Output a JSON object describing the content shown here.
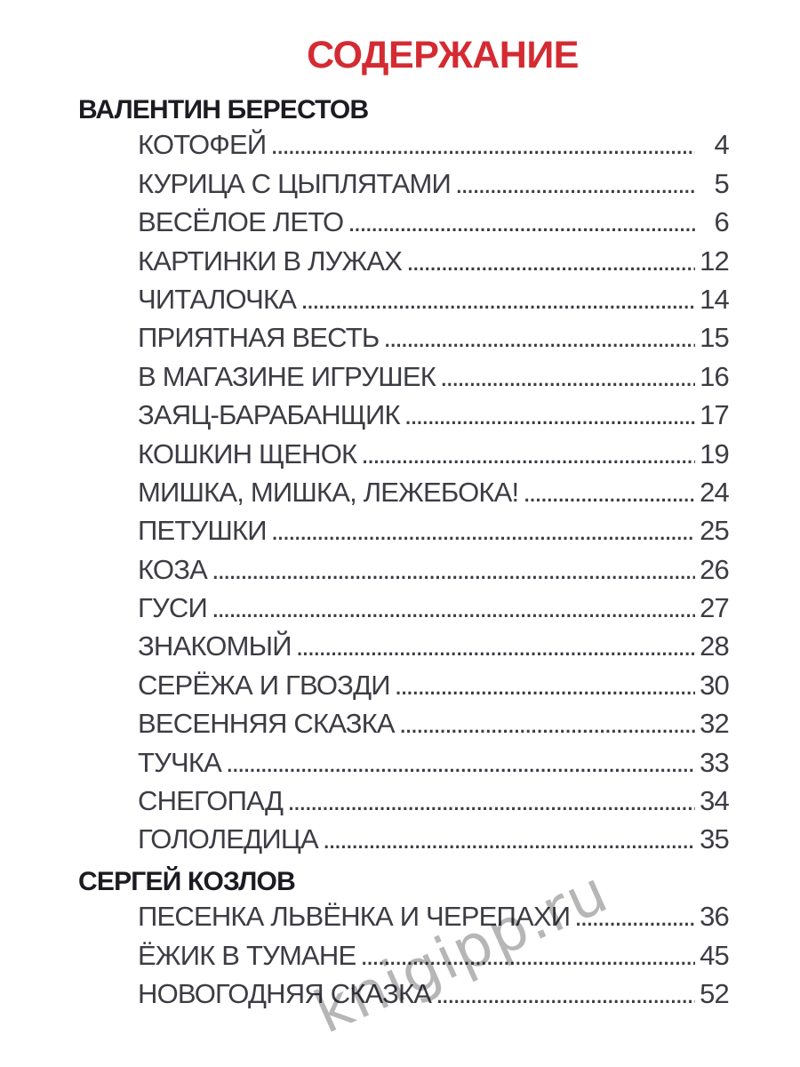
{
  "page": {
    "title": "СОДЕРЖАНИЕ",
    "watermark": "knigipp.ru"
  },
  "colors": {
    "title": "#d42b32",
    "heading": "#1b1b22",
    "entry": "#3c3c44"
  },
  "toc": {
    "sections": [
      {
        "author": "ВАЛЕНТИН БЕРЕСТОВ",
        "entries": [
          {
            "title": "КОТОФЕЙ",
            "page": "4"
          },
          {
            "title": "КУРИЦА С ЦЫПЛЯТАМИ",
            "page": "5"
          },
          {
            "title": "ВЕСЁЛОЕ ЛЕТО",
            "page": "6"
          },
          {
            "title": "КАРТИНКИ В ЛУЖАХ",
            "page": "12"
          },
          {
            "title": "ЧИТАЛОЧКА",
            "page": "14"
          },
          {
            "title": "ПРИЯТНАЯ ВЕСТЬ",
            "page": "15"
          },
          {
            "title": "В МАГАЗИНЕ ИГРУШЕК",
            "page": "16"
          },
          {
            "title": "ЗАЯЦ-БАРАБАНЩИК",
            "page": "17"
          },
          {
            "title": "КОШКИН ЩЕНОК",
            "page": "19"
          },
          {
            "title": "МИШКА, МИШКА, ЛЕЖЕБОКА!",
            "page": "24"
          },
          {
            "title": "ПЕТУШКИ",
            "page": "25"
          },
          {
            "title": "КОЗА",
            "page": "26"
          },
          {
            "title": "ГУСИ",
            "page": "27"
          },
          {
            "title": "ЗНАКОМЫЙ",
            "page": "28"
          },
          {
            "title": "СЕРЁЖА И ГВОЗДИ",
            "page": "30"
          },
          {
            "title": "ВЕСЕННЯЯ СКАЗКА",
            "page": "32"
          },
          {
            "title": "ТУЧКА",
            "page": "33"
          },
          {
            "title": "СНЕГОПАД",
            "page": "34"
          },
          {
            "title": "ГОЛОЛЕДИЦА",
            "page": "35"
          }
        ]
      },
      {
        "author": "СЕРГЕЙ КОЗЛОВ",
        "entries": [
          {
            "title": "ПЕСЕНКА ЛЬВЁНКА И ЧЕРЕПАХИ",
            "page": "36"
          },
          {
            "title": "ЁЖИК В ТУМАНЕ",
            "page": "45"
          },
          {
            "title": "НОВОГОДНЯЯ СКАЗКА",
            "page": "52"
          }
        ]
      }
    ]
  }
}
